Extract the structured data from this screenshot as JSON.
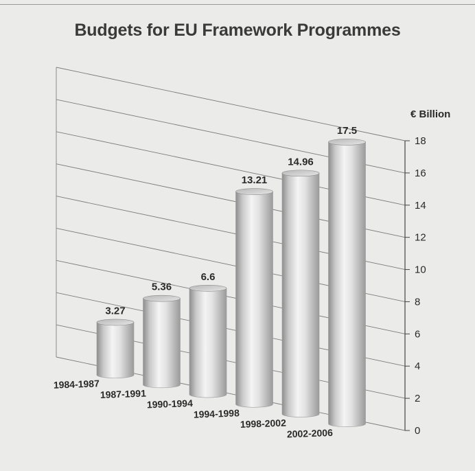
{
  "chart_data": {
    "type": "bar",
    "title": "Budgets for EU Framework Programmes",
    "ylabel": "€ Billion",
    "xlabel": "",
    "categories": [
      "1984-1987",
      "1987-1991",
      "1990-1994",
      "1994-1998",
      "1998-2002",
      "2002-2006"
    ],
    "values": [
      3.27,
      5.36,
      6.6,
      13.21,
      14.96,
      17.5
    ],
    "data_labels": [
      "3.27",
      "5.36",
      "6.6",
      "13.21",
      "14.96",
      "17.5"
    ],
    "ylim": [
      0,
      18
    ],
    "yticks": [
      0,
      2,
      4,
      6,
      8,
      10,
      12,
      14,
      16,
      18
    ],
    "grid": true,
    "style": "3d-cylinder"
  }
}
